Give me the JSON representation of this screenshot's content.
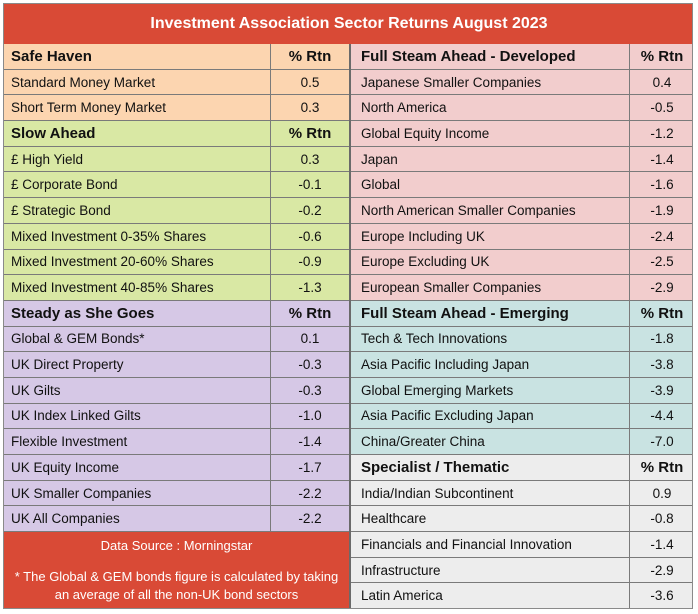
{
  "title": "Investment Association Sector Returns August 2023",
  "left": [
    {
      "name": "Safe Haven",
      "rtn": "% Rtn",
      "header": true,
      "cls": "sh"
    },
    {
      "name": "Standard Money Market",
      "rtn": "0.5",
      "cls": "sh"
    },
    {
      "name": "Short Term Money Market",
      "rtn": "0.3",
      "cls": "sh"
    },
    {
      "name": "Slow Ahead",
      "rtn": "% Rtn",
      "header": true,
      "cls": "sa"
    },
    {
      "name": "£ High Yield",
      "rtn": "0.3",
      "cls": "sa"
    },
    {
      "name": "£ Corporate Bond",
      "rtn": "-0.1",
      "cls": "sa"
    },
    {
      "name": "£ Strategic Bond",
      "rtn": "-0.2",
      "cls": "sa"
    },
    {
      "name": "Mixed Investment 0-35% Shares",
      "rtn": "-0.6",
      "cls": "sa"
    },
    {
      "name": "Mixed Investment 20-60% Shares",
      "rtn": "-0.9",
      "cls": "sa"
    },
    {
      "name": "Mixed Investment 40-85% Shares",
      "rtn": "-1.3",
      "cls": "sa"
    },
    {
      "name": "Steady as She Goes",
      "rtn": "% Rtn",
      "header": true,
      "cls": "sg"
    },
    {
      "name": "Global & GEM Bonds*",
      "rtn": "0.1",
      "cls": "sg"
    },
    {
      "name": "UK Direct Property",
      "rtn": "-0.3",
      "cls": "sg"
    },
    {
      "name": "UK Gilts",
      "rtn": "-0.3",
      "cls": "sg"
    },
    {
      "name": "UK Index Linked Gilts",
      "rtn": "-1.0",
      "cls": "sg"
    },
    {
      "name": "Flexible Investment",
      "rtn": "-1.4",
      "cls": "sg"
    },
    {
      "name": "UK Equity Income",
      "rtn": "-1.7",
      "cls": "sg"
    },
    {
      "name": "UK Smaller Companies",
      "rtn": "-2.2",
      "cls": "sg"
    },
    {
      "name": "UK All Companies",
      "rtn": "-2.2",
      "cls": "sg"
    }
  ],
  "right": [
    {
      "name": "Full Steam Ahead - Developed",
      "rtn": "% Rtn",
      "header": true,
      "cls": "fd"
    },
    {
      "name": "Japanese Smaller Companies",
      "rtn": "0.4",
      "cls": "fd"
    },
    {
      "name": "North America",
      "rtn": "-0.5",
      "cls": "fd"
    },
    {
      "name": "Global Equity Income",
      "rtn": "-1.2",
      "cls": "fd"
    },
    {
      "name": "Japan",
      "rtn": "-1.4",
      "cls": "fd"
    },
    {
      "name": "Global",
      "rtn": "-1.6",
      "cls": "fd"
    },
    {
      "name": "North American Smaller Companies",
      "rtn": "-1.9",
      "cls": "fd"
    },
    {
      "name": "Europe Including UK",
      "rtn": "-2.4",
      "cls": "fd"
    },
    {
      "name": "Europe Excluding UK",
      "rtn": "-2.5",
      "cls": "fd"
    },
    {
      "name": "European Smaller Companies",
      "rtn": "-2.9",
      "cls": "fd"
    },
    {
      "name": "Full Steam Ahead - Emerging",
      "rtn": "% Rtn",
      "header": true,
      "cls": "fe"
    },
    {
      "name": "Tech & Tech Innovations",
      "rtn": "-1.8",
      "cls": "fe"
    },
    {
      "name": "Asia Pacific Including Japan",
      "rtn": "-3.8",
      "cls": "fe"
    },
    {
      "name": "Global Emerging Markets",
      "rtn": "-3.9",
      "cls": "fe"
    },
    {
      "name": "Asia Pacific Excluding Japan",
      "rtn": "-4.4",
      "cls": "fe"
    },
    {
      "name": "China/Greater China",
      "rtn": "-7.0",
      "cls": "fe"
    },
    {
      "name": "Specialist / Thematic",
      "rtn": "% Rtn",
      "header": true,
      "cls": "sp"
    },
    {
      "name": "India/Indian Subcontinent",
      "rtn": "0.9",
      "cls": "sp"
    },
    {
      "name": "Healthcare",
      "rtn": "-0.8",
      "cls": "sp"
    },
    {
      "name": "Financials and Financial Innovation",
      "rtn": "-1.4",
      "cls": "sp"
    },
    {
      "name": "Infrastructure",
      "rtn": "-2.9",
      "cls": "sp"
    },
    {
      "name": "Latin America",
      "rtn": "-3.6",
      "cls": "sp"
    }
  ],
  "footer": {
    "source": "Data Source : Morningstar",
    "note": "* The Global & GEM bonds figure is calculated by taking an average of all the non-UK bond sectors"
  }
}
